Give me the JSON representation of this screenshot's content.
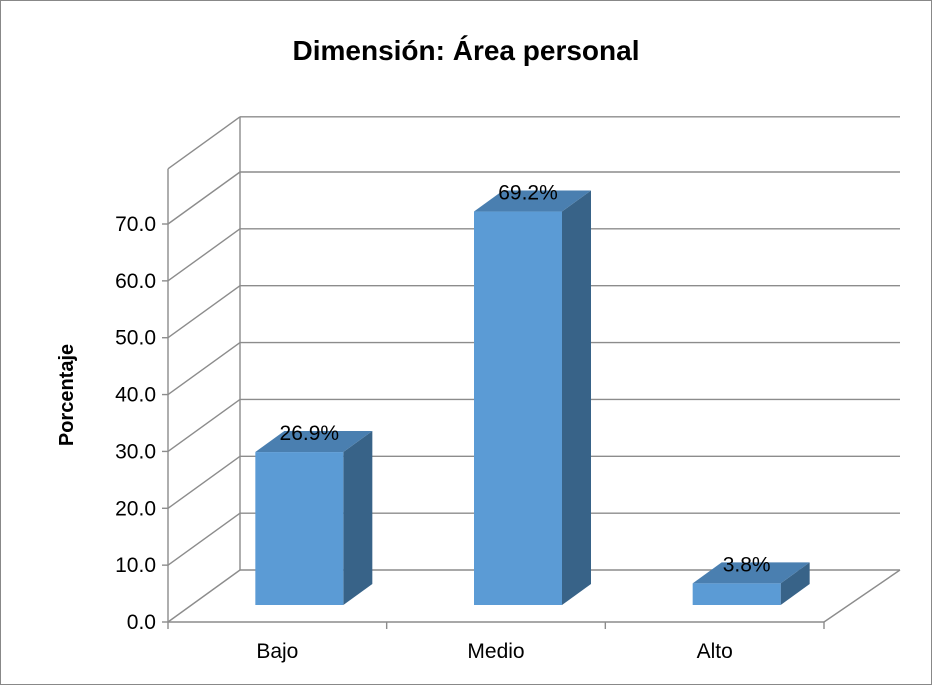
{
  "chart_data": {
    "type": "bar",
    "title": "Dimensión: Área personal",
    "xlabel": "",
    "ylabel": "Porcentaje",
    "categories": [
      "Bajo",
      "Medio",
      "Alto"
    ],
    "values": [
      26.9,
      69.2,
      3.8
    ],
    "data_labels": [
      "26.9%",
      "69.2%",
      "3.8%"
    ],
    "yticks": [
      "0.0",
      "10.0",
      "20.0",
      "30.0",
      "40.0",
      "50.0",
      "60.0",
      "70.0"
    ],
    "ylim": [
      0,
      70
    ],
    "grid": true,
    "legend": "none",
    "style": "3d-column",
    "colors": {
      "front": "#5b9bd5",
      "top": "#4a7fb0",
      "side": "#386388"
    }
  }
}
